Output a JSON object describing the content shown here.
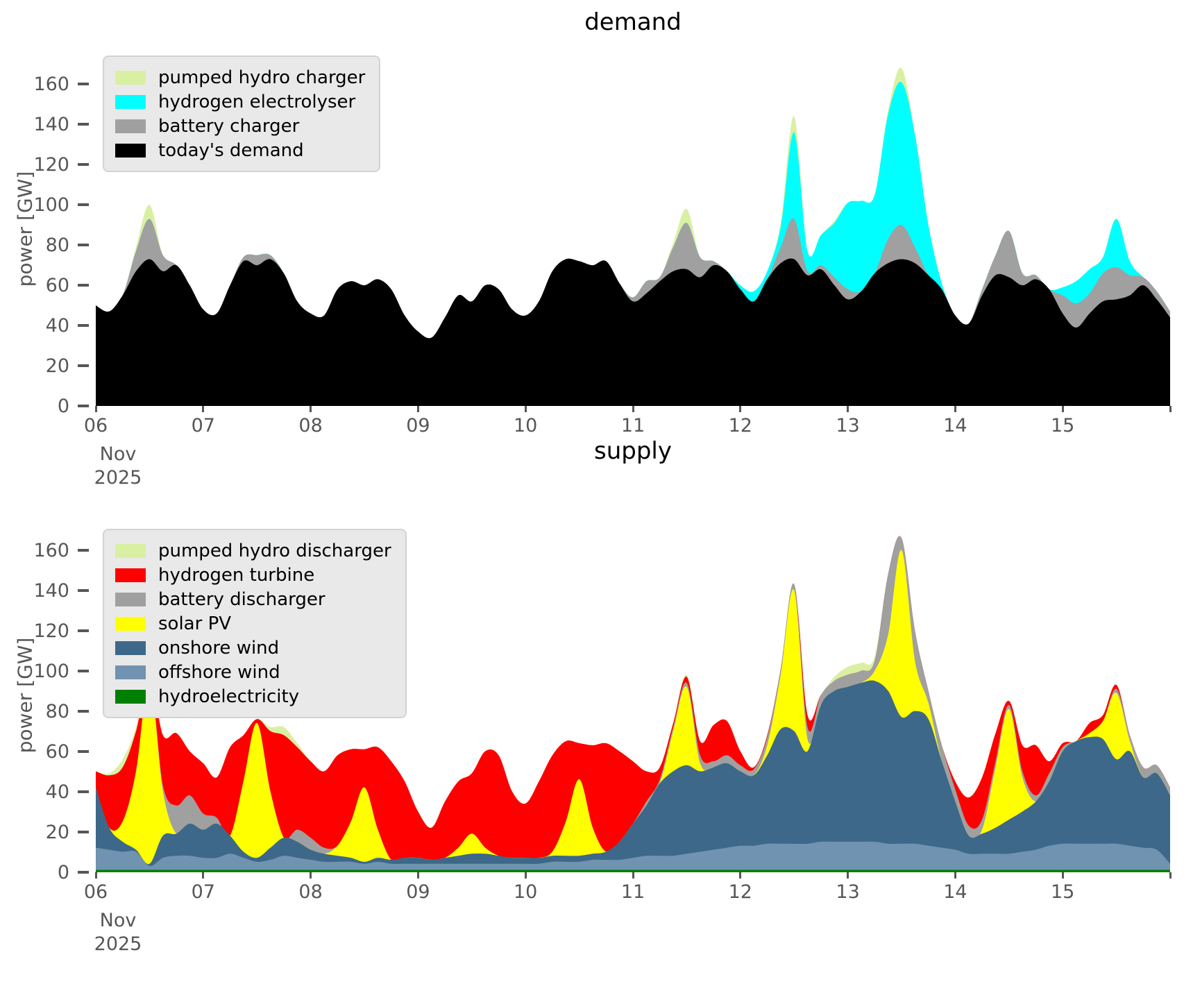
{
  "style": {
    "background": "#ffffff",
    "tick_color": "#565656",
    "title_color": "#000000",
    "legend_background": "#e9e9e9",
    "legend_border": "#d3d3d3"
  },
  "chart_data": [
    {
      "id": "demand",
      "type": "area",
      "title": "demand",
      "ylabel": "power [GW]",
      "grid": false,
      "legend_position": "upper left",
      "x_axis": {
        "tick_labels": [
          "06",
          "07",
          "08",
          "09",
          "10",
          "11",
          "12",
          "13",
          "14",
          "15"
        ],
        "sub_labels": [
          "Nov",
          "2025"
        ],
        "start_day": 6,
        "end_day": 16,
        "step_days": 0.125
      },
      "y_axis": {
        "ticks": [
          0,
          20,
          40,
          60,
          80,
          100,
          120,
          140,
          160
        ],
        "max": 176
      },
      "legend": [
        {
          "label": "pumped hydro charger",
          "color": "#d9f0a3"
        },
        {
          "label": "hydrogen electrolyser",
          "color": "#00ffff"
        },
        {
          "label": "battery charger",
          "color": "#a0a0a0"
        },
        {
          "label": "today's demand",
          "color": "#000000"
        }
      ],
      "series": [
        {
          "name": "today's demand",
          "color": "#000000",
          "values": [
            50,
            47,
            55,
            67,
            73,
            67,
            70,
            60,
            48,
            46,
            60,
            72,
            70,
            73,
            66,
            52,
            46,
            45,
            58,
            62,
            60,
            63,
            58,
            45,
            37,
            34,
            44,
            55,
            52,
            60,
            58,
            48,
            45,
            52,
            67,
            73,
            72,
            70,
            72,
            61,
            52,
            56,
            62,
            67,
            68,
            64,
            70,
            67,
            58,
            52,
            63,
            71,
            73,
            65,
            68,
            60,
            53,
            57,
            66,
            71,
            73,
            71,
            65,
            58,
            45,
            41,
            55,
            65,
            64,
            60,
            63,
            58,
            46,
            39,
            46,
            52,
            53,
            55,
            60,
            53,
            44
          ]
        },
        {
          "name": "battery charger",
          "color": "#a0a0a0",
          "values": [
            0,
            0,
            0,
            10,
            20,
            8,
            0,
            0,
            0,
            0,
            0,
            2,
            5,
            2,
            0,
            0,
            0,
            0,
            0,
            0,
            0,
            0,
            0,
            0,
            0,
            0,
            0,
            0,
            0,
            0,
            0,
            0,
            0,
            0,
            0,
            0,
            0,
            0,
            0,
            0,
            2,
            6,
            2,
            12,
            23,
            10,
            2,
            0,
            0,
            0,
            0,
            8,
            20,
            2,
            2,
            4,
            5,
            0,
            0,
            12,
            17,
            8,
            0,
            0,
            0,
            0,
            3,
            10,
            23,
            6,
            2,
            0,
            9,
            12,
            10,
            14,
            16,
            10,
            4,
            4,
            3
          ]
        },
        {
          "name": "hydrogen electrolyser",
          "color": "#00ffff",
          "values": [
            0,
            0,
            0,
            0,
            0,
            0,
            0,
            0,
            0,
            0,
            0,
            0,
            0,
            0,
            0,
            0,
            0,
            0,
            0,
            0,
            0,
            0,
            0,
            0,
            0,
            0,
            0,
            0,
            0,
            0,
            0,
            0,
            0,
            0,
            0,
            0,
            0,
            0,
            0,
            0,
            0,
            0,
            0,
            0,
            0,
            0,
            0,
            0,
            2,
            5,
            4,
            10,
            43,
            10,
            15,
            27,
            43,
            45,
            39,
            62,
            71,
            56,
            25,
            3,
            0,
            0,
            0,
            0,
            0,
            0,
            0,
            0,
            4,
            11,
            12,
            8,
            24,
            7,
            0,
            0,
            0
          ]
        },
        {
          "name": "pumped hydro charger",
          "color": "#d9f0a3",
          "values": [
            0,
            0,
            0,
            2,
            7,
            0,
            0,
            0,
            0,
            0,
            0,
            0,
            0,
            0,
            0,
            0,
            0,
            0,
            0,
            0,
            0,
            0,
            0,
            0,
            0,
            0,
            0,
            0,
            0,
            0,
            0,
            0,
            0,
            0,
            0,
            0,
            0,
            0,
            0,
            0,
            0,
            0,
            0,
            2,
            7,
            0,
            0,
            0,
            0,
            0,
            0,
            2,
            8,
            0,
            0,
            1,
            0,
            0,
            0,
            2,
            7,
            0,
            0,
            0,
            0,
            0,
            0,
            0,
            0,
            0,
            0,
            0,
            0,
            0,
            0,
            0,
            0,
            0,
            0,
            0,
            0
          ]
        }
      ]
    },
    {
      "id": "supply",
      "type": "area",
      "title": "supply",
      "ylabel": "power [GW]",
      "grid": false,
      "legend_position": "upper left",
      "x_axis": {
        "tick_labels": [
          "06",
          "07",
          "08",
          "09",
          "10",
          "11",
          "12",
          "13",
          "14",
          "15"
        ],
        "sub_labels": [
          "Nov",
          "2025"
        ],
        "start_day": 6,
        "end_day": 16,
        "step_days": 0.125
      },
      "y_axis": {
        "ticks": [
          0,
          20,
          40,
          60,
          80,
          100,
          120,
          140,
          160
        ],
        "max": 176
      },
      "legend": [
        {
          "label": "pumped hydro discharger",
          "color": "#d9f0a3"
        },
        {
          "label": "hydrogen turbine",
          "color": "#ff0000"
        },
        {
          "label": "battery discharger",
          "color": "#a0a0a0"
        },
        {
          "label": "solar PV",
          "color": "#ffff00"
        },
        {
          "label": "onshore wind",
          "color": "#3d6889"
        },
        {
          "label": "offshore wind",
          "color": "#6f93b0"
        },
        {
          "label": "hydroelectricity",
          "color": "#008000"
        }
      ],
      "series": [
        {
          "name": "hydroelectricity",
          "color": "#008000",
          "values": [
            1.2,
            1.2,
            1.2,
            1.2,
            1.2,
            1.2,
            1.2,
            1.2,
            1.2,
            1.2,
            1.2,
            1.2,
            1.2,
            1.2,
            1.2,
            1.2,
            1.2,
            1.2,
            1.2,
            1.2,
            1.2,
            1.2,
            1.2,
            1.2,
            1.2,
            1.2,
            1.2,
            1.2,
            1.2,
            1.2,
            1.2,
            1.2,
            1.2,
            1.2,
            1.2,
            1.2,
            1.2,
            1.2,
            1.2,
            1.2,
            1.2,
            1.2,
            1.2,
            1.2,
            1.2,
            1.2,
            1.2,
            1.2,
            1.2,
            1.2,
            1.2,
            1.2,
            1.2,
            1.2,
            1.2,
            1.2,
            1.2,
            1.2,
            1.2,
            1.2,
            1.2,
            1.2,
            1.2,
            1.2,
            1.2,
            1.2,
            1.2,
            1.2,
            1.2,
            1.2,
            1.2,
            1.2,
            1.2,
            1.2,
            1.2,
            1.2,
            1.2,
            1.2,
            1.2,
            1.2,
            1.2
          ]
        },
        {
          "name": "offshore wind",
          "color": "#6f93b0",
          "values": [
            11,
            10,
            9,
            9,
            2,
            6,
            7,
            7,
            6,
            6,
            8,
            6,
            4,
            5,
            7,
            6,
            5,
            4,
            4,
            4,
            3,
            4,
            3,
            3,
            3,
            3,
            3,
            3,
            3,
            3,
            3,
            3,
            3,
            3,
            4,
            4,
            4,
            5,
            5,
            5,
            6,
            7,
            7,
            7,
            8,
            9,
            10,
            11,
            12,
            12,
            13,
            13,
            13,
            13,
            14,
            14,
            14,
            14,
            14,
            13,
            13,
            13,
            12,
            11,
            10,
            8,
            8,
            8,
            8,
            9,
            10,
            12,
            13,
            13,
            13,
            13,
            13,
            12,
            11,
            10,
            3
          ]
        },
        {
          "name": "onshore wind",
          "color": "#3d6889",
          "values": [
            30,
            11,
            5,
            1,
            1,
            11,
            11,
            16,
            14,
            17,
            9,
            3,
            2,
            6,
            9,
            8,
            5,
            4,
            3,
            2,
            1,
            2,
            2,
            3,
            3,
            2,
            3,
            4,
            5,
            5,
            4,
            3,
            3,
            3,
            3,
            3,
            3,
            3,
            4,
            9,
            17,
            25,
            36,
            42,
            44,
            40,
            41,
            42,
            37,
            35,
            44,
            57,
            56,
            46,
            68,
            75,
            77,
            79,
            80,
            76,
            63,
            66,
            63,
            43,
            24,
            9,
            10,
            13,
            17,
            20,
            24,
            32,
            46,
            51,
            53,
            52,
            42,
            47,
            35,
            38,
            34
          ]
        },
        {
          "name": "solar PV",
          "color": "#ffff00",
          "values": [
            0,
            0,
            10,
            39,
            92,
            22,
            0,
            0,
            0,
            0,
            0,
            35,
            67,
            28,
            0,
            0,
            0,
            0,
            5,
            18,
            37,
            14,
            0,
            0,
            0,
            0,
            0,
            4,
            10,
            3,
            0,
            0,
            0,
            0,
            2,
            17,
            38,
            13,
            0,
            0,
            0,
            0,
            0,
            20,
            39,
            4,
            0,
            0,
            0,
            0,
            5,
            27,
            70,
            6,
            0,
            0,
            0,
            0,
            5,
            28,
            83,
            25,
            8,
            0,
            0,
            0,
            2,
            30,
            55,
            17,
            0,
            0,
            0,
            0,
            2,
            9,
            33,
            5,
            0,
            0,
            0
          ]
        },
        {
          "name": "battery discharger",
          "color": "#a0a0a0",
          "values": [
            0,
            0,
            0,
            0,
            0,
            3,
            14,
            14,
            8,
            3,
            0,
            0,
            0,
            0,
            0,
            6,
            6,
            3,
            0,
            0,
            0,
            0,
            0,
            0,
            0,
            0,
            0,
            0,
            0,
            0,
            0,
            0,
            0,
            0,
            0,
            0,
            0,
            0,
            0,
            0,
            0,
            2,
            2,
            2,
            2,
            4,
            3,
            4,
            3,
            3,
            4,
            3,
            3,
            6,
            5,
            5,
            6,
            6,
            5,
            30,
            6,
            15,
            6,
            8,
            6,
            5,
            5,
            3,
            2,
            3,
            3,
            4,
            2,
            0,
            0,
            0,
            2,
            3,
            5,
            4,
            4
          ]
        },
        {
          "name": "hydrogen turbine",
          "color": "#ff0000",
          "values": [
            8,
            26,
            27,
            20,
            1,
            25,
            36,
            22,
            25,
            20,
            44,
            23,
            2,
            30,
            51,
            41,
            38,
            38,
            45,
            36,
            19,
            41,
            49,
            38,
            23,
            16,
            28,
            33,
            30,
            48,
            50,
            33,
            27,
            38,
            48,
            40,
            18,
            41,
            54,
            45,
            31,
            15,
            6,
            2,
            3,
            7,
            18,
            17,
            7,
            1,
            1,
            0,
            0,
            6,
            0,
            0,
            0,
            0,
            0,
            0,
            0,
            0,
            0,
            0,
            4,
            14,
            21,
            14,
            2,
            13,
            25,
            6,
            2,
            0,
            5,
            3,
            2,
            0,
            0,
            0,
            0
          ]
        },
        {
          "name": "pumped hydro discharger",
          "color": "#d9f0a3",
          "values": [
            0,
            1,
            4,
            2,
            4,
            0,
            0,
            0,
            0,
            0,
            0,
            0,
            0,
            2,
            4,
            2,
            0,
            0,
            0,
            0,
            0,
            0,
            0,
            0,
            0,
            0,
            0,
            0,
            0,
            0,
            0,
            0,
            0,
            0,
            0,
            0,
            0,
            0,
            0,
            0,
            0,
            0,
            0,
            0,
            1,
            0,
            0,
            0,
            0,
            0,
            0,
            0,
            0,
            0,
            0,
            2,
            4,
            4,
            2,
            0,
            0,
            0,
            0,
            0,
            0,
            0,
            0,
            0,
            0,
            0,
            0,
            0,
            0,
            0,
            0,
            0,
            0,
            0,
            0,
            0,
            0
          ]
        }
      ]
    }
  ]
}
